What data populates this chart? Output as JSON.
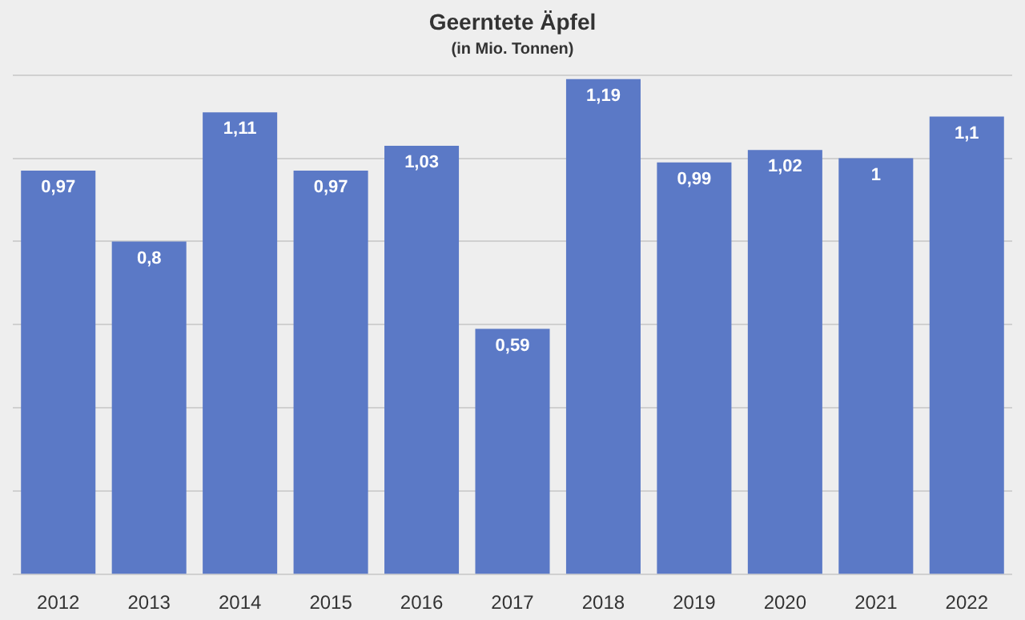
{
  "chart_data": {
    "type": "bar",
    "title": "Geerntete Äpfel",
    "subtitle": "(in Mio. Tonnen)",
    "categories": [
      "2012",
      "2013",
      "2014",
      "2015",
      "2016",
      "2017",
      "2018",
      "2019",
      "2020",
      "2021",
      "2022"
    ],
    "values": [
      0.97,
      0.8,
      1.11,
      0.97,
      1.03,
      0.59,
      1.19,
      0.99,
      1.02,
      1,
      1.1
    ],
    "value_labels": [
      "0,97",
      "0,8",
      "1,11",
      "0,97",
      "1,03",
      "0,59",
      "1,19",
      "0,99",
      "1,02",
      "1",
      "1,1"
    ],
    "color": "#5b79c6",
    "ylim": [
      0,
      1.2
    ],
    "yticks": [
      {
        "value": 0,
        "label": null
      },
      {
        "value": 0.2,
        "label": null
      },
      {
        "value": 0.4,
        "label": null
      },
      {
        "value": 0.6,
        "label": null
      },
      {
        "value": 0.8,
        "label": null
      },
      {
        "value": 1,
        "label": null
      },
      {
        "value": 1.2,
        "label": null
      }
    ],
    "grid": "y",
    "tick_labels": "x",
    "legend": false
  }
}
